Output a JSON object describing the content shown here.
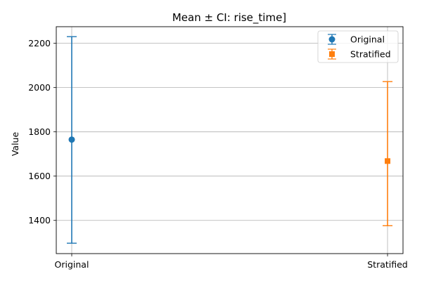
{
  "chart_data": {
    "type": "errorbar",
    "title": "Mean ± CI: rise_time]",
    "xlabel": "",
    "ylabel": "Value",
    "categories": [
      "Original",
      "Stratified"
    ],
    "ylim": [
      1250,
      2275
    ],
    "yticks": [
      1400,
      1600,
      1800,
      2000,
      2200
    ],
    "grid": true,
    "legend_position": "top-right",
    "series": [
      {
        "name": "Original",
        "category": "Original",
        "mean": 1765,
        "ci_low": 1297,
        "ci_high": 2230,
        "color": "#1f77b4",
        "marker": "circle"
      },
      {
        "name": "Stratified",
        "category": "Stratified",
        "mean": 1668,
        "ci_low": 1376,
        "ci_high": 2027,
        "color": "#ff7f0e",
        "marker": "square"
      }
    ]
  }
}
